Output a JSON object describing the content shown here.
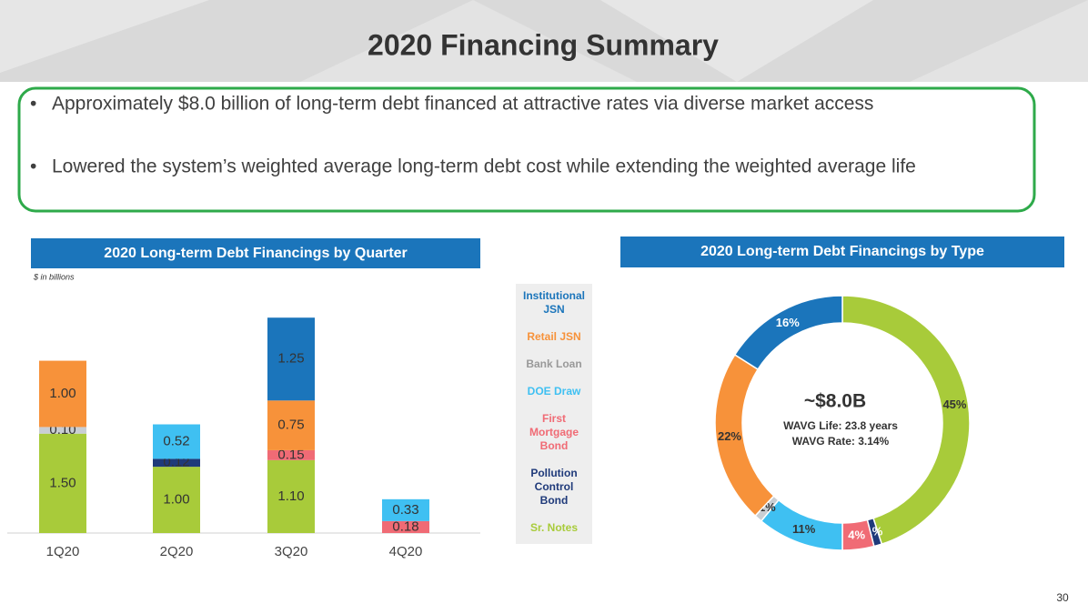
{
  "title": "2020 Financing Summary",
  "bullets": [
    "Approximately $8.0 billion of long-term debt financed at attractive rates via diverse market access",
    "Lowered the system’s weighted average long-term debt cost while extending the weighted average life"
  ],
  "page_number": "30",
  "chart_data": [
    {
      "type": "bar",
      "stacked": true,
      "title": "2020 Long-term Debt Financings by Quarter",
      "subtitle": "$ in billions",
      "categories": [
        "1Q20",
        "2Q20",
        "3Q20",
        "4Q20"
      ],
      "ylim": [
        0,
        3.5
      ],
      "series": [
        {
          "name": "Institutional JSN",
          "color": "#1b75bb",
          "values": [
            null,
            null,
            1.25,
            null
          ],
          "value_labels": [
            null,
            null,
            "1.25",
            null
          ]
        },
        {
          "name": "Retail JSN",
          "color": "#f7923a",
          "values": [
            1.0,
            null,
            0.75,
            null
          ],
          "value_labels": [
            "1.00",
            null,
            "0.75",
            null
          ]
        },
        {
          "name": "Bank Loan",
          "color": "#c9ced3",
          "values": [
            0.1,
            null,
            null,
            null
          ],
          "value_labels": [
            "0.10",
            null,
            null,
            null
          ]
        },
        {
          "name": "DOE Draw",
          "color": "#3fc0f2",
          "values": [
            null,
            0.52,
            null,
            0.33
          ],
          "value_labels": [
            null,
            "0.52",
            null,
            "0.33"
          ]
        },
        {
          "name": "First Mortgage Bond",
          "color": "#f06b75",
          "values": [
            null,
            null,
            0.15,
            0.18
          ],
          "value_labels": [
            null,
            null,
            "0.15",
            "0.18"
          ]
        },
        {
          "name": "Pollution Control Bond",
          "color": "#1f3a7a",
          "values": [
            null,
            0.12,
            null,
            null
          ],
          "value_labels": [
            null,
            "0.12",
            null,
            null
          ]
        },
        {
          "name": "Sr. Notes",
          "color": "#a8cb3a",
          "values": [
            1.5,
            1.0,
            1.1,
            null
          ],
          "value_labels": [
            "1.50",
            "1.00",
            "1.10",
            null
          ]
        }
      ]
    },
    {
      "type": "donut",
      "title": "2020 Long-term Debt Financings by Type",
      "values": [
        45,
        1,
        4,
        11,
        1,
        22,
        16
      ],
      "value_labels": [
        "45%",
        "1%",
        "4%",
        "11%",
        "1%",
        "22%",
        "16%"
      ],
      "colors": [
        "#a8cb3a",
        "#1f3a7a",
        "#f06b75",
        "#3fc0f2",
        "#c9ced3",
        "#f7923a",
        "#1b75bb"
      ],
      "center_title": "~$8.0B",
      "center_lines": [
        "WAVG Life: 23.8 years",
        "WAVG Rate: 3.14%"
      ]
    }
  ]
}
